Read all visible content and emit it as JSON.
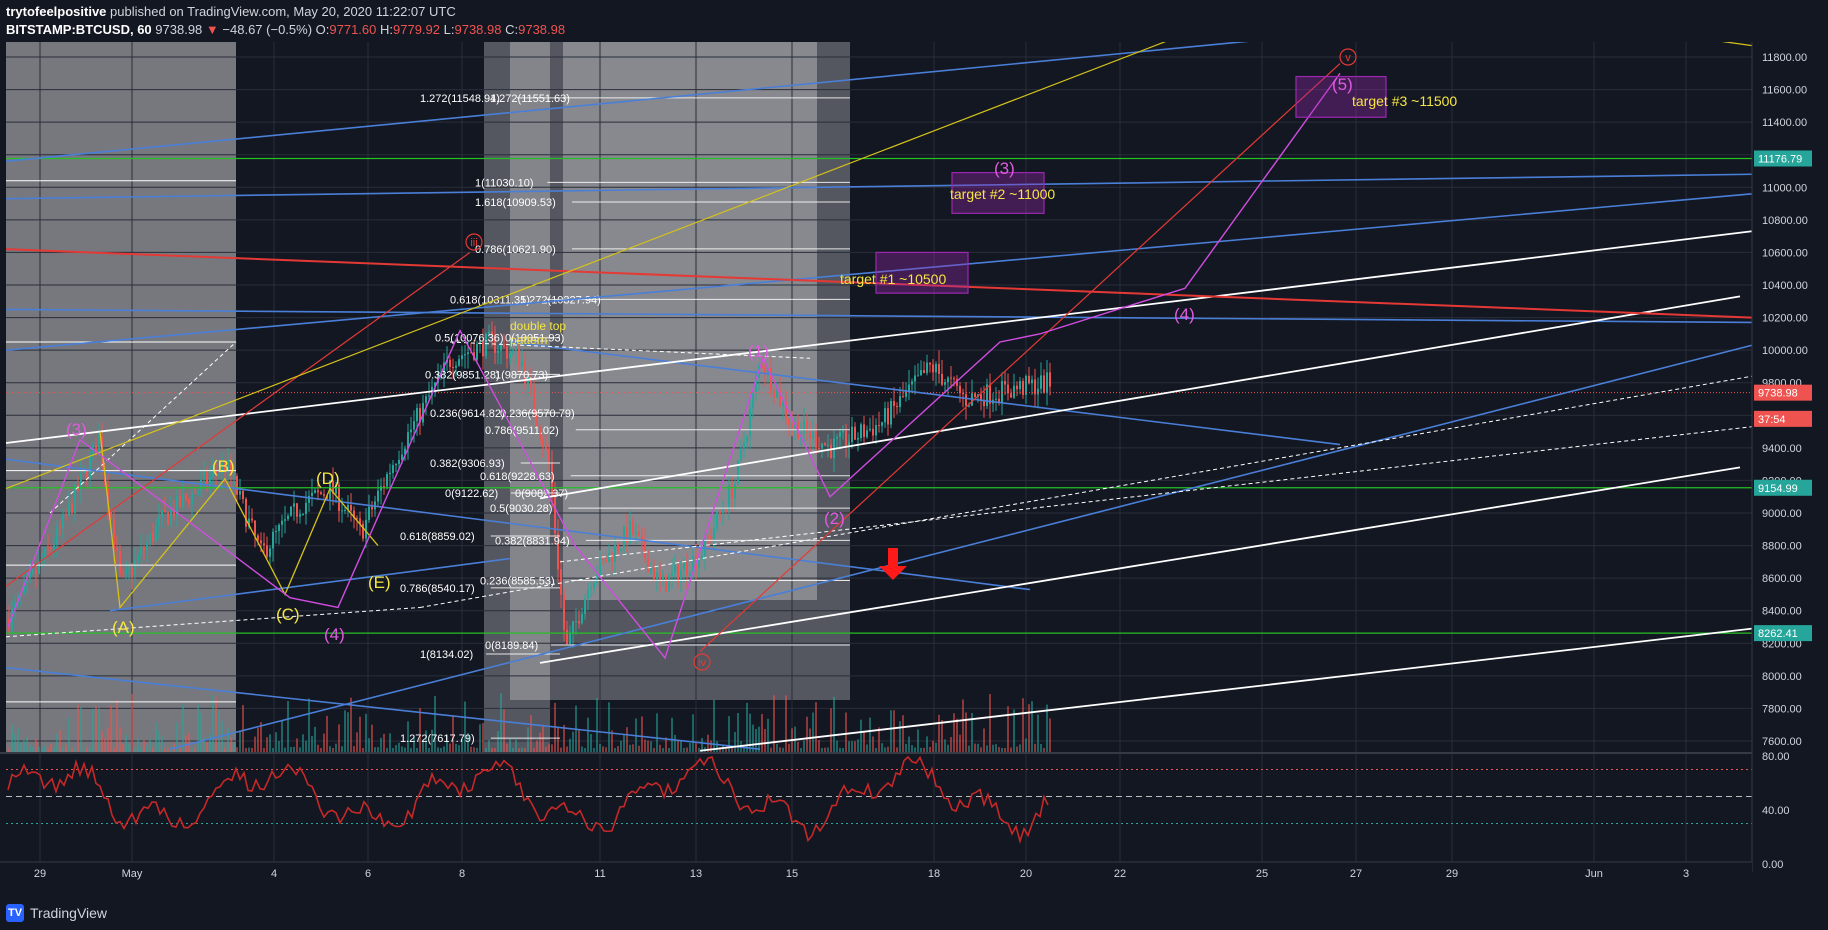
{
  "header": {
    "author": "trytofeelpositive",
    "published": "published on TradingView.com, May 20, 2020 11:22:07 UTC",
    "symbol": "BITSTAMP:BTCUSD, 60",
    "last": "9738.98",
    "change": "−48.67 (−0.5%)",
    "open_label": "O:",
    "open": "9771.60",
    "high_label": "H:",
    "high": "9779.92",
    "low_label": "L:",
    "low": "9738.98",
    "close_label": "C:",
    "close": "9738.98"
  },
  "footer": {
    "brand": "TradingView",
    "logo_icon": "tradingview-logo-icon"
  },
  "colors": {
    "background": "#131722",
    "grid": "#2a2e39",
    "up": "#26a69a",
    "down": "#ef5350",
    "price_line": "#ef5350",
    "trend_blue": "#4a7fd8",
    "trend_white": "#ffffff",
    "red_line": "#e53935",
    "yellow_line": "#d4c21a",
    "magenta": "#d04de0",
    "green_level": "#26c026",
    "label_yellow": "#f5e642",
    "label_magenta": "#e05be0",
    "label_red": "#e53935",
    "rsi_line": "#c62828",
    "target_box": "#9c27b0"
  },
  "chart_data": {
    "type": "candlestick",
    "title": "",
    "ylim": [
      7500,
      12000
    ],
    "price_ticks": [
      "11800.00",
      "11600.00",
      "11400.00",
      "11200.00",
      "11000.00",
      "10800.00",
      "10600.00",
      "10400.00",
      "10200.00",
      "10000.00",
      "9800.00",
      "9600.00",
      "9400.00",
      "9200.00",
      "9000.00",
      "8800.00",
      "8600.00",
      "8400.00",
      "8200.00",
      "8000.00",
      "7800.00",
      "7600.00"
    ],
    "x_ticks": [
      "29",
      "May",
      "4",
      "6",
      "8",
      "11",
      "13",
      "15",
      "18",
      "20",
      "22",
      "25",
      "27",
      "29",
      "Jun",
      "3"
    ],
    "price_badges": [
      {
        "label": "11176.79",
        "value": 11176.79,
        "color": "#26a69a"
      },
      {
        "label": "9738.98",
        "value": 9738.98,
        "color": "#ef5350"
      },
      {
        "label": "37:54",
        "value": 9578,
        "color": "#ef5350"
      },
      {
        "label": "9154.99",
        "value": 9154.99,
        "color": "#26a69a"
      },
      {
        "label": "8262.41",
        "value": 8262.41,
        "color": "#26a69a"
      }
    ],
    "fib_labels": [
      {
        "label": "1.272(11548.94)",
        "value": 11548.94,
        "alt": "1.272(11551.63)"
      },
      {
        "label": "1(11030.10)",
        "value": 11030.1
      },
      {
        "label": "1.618(10909.53)",
        "value": 10909.53
      },
      {
        "label": "0.786(10621.90)",
        "value": 10621.9
      },
      {
        "label": "0.618(10311.35)",
        "value": 10311.35,
        "alt": "1.272(10327.94)"
      },
      {
        "label": "0.5(10076.36)",
        "value": 10076.36,
        "alt": "0(10051.93)"
      },
      {
        "label": "0.382(9851.28)",
        "value": 9851.28,
        "alt": "1(9870.73)"
      },
      {
        "label": "0.236(9614.82)",
        "value": 9614.82,
        "alt": "0.236(9570.79)"
      },
      {
        "label": "0.786(9511.02)",
        "value": 9511.02
      },
      {
        "label": "0.382(9306.93)",
        "value": 9306.93
      },
      {
        "label": "0.618(9228.63)",
        "value": 9228.63
      },
      {
        "label": "0(9122.62)",
        "value": 9122.62,
        "alt": "0(9082.37)"
      },
      {
        "label": "0.5(9030.28)",
        "value": 9030.28
      },
      {
        "label": "0.618(8859.02)",
        "value": 8859.02
      },
      {
        "label": "0.382(8831.94)",
        "value": 8831.94
      },
      {
        "label": "0.236(8585.53)",
        "value": 8585.53
      },
      {
        "label": "0.786(8540.17)",
        "value": 8540.17
      },
      {
        "label": "0(8189.84)",
        "value": 8189.84
      },
      {
        "label": "1(8134.02)",
        "value": 8134.02
      },
      {
        "label": "1.272(7617.79)",
        "value": 7617.79
      }
    ],
    "wave_labels_yellow": [
      "(A)",
      "(B)",
      "(C)",
      "(D)",
      "(E)"
    ],
    "wave_labels_magenta": [
      "(3)",
      "(4)",
      "(1)",
      "(2)",
      "(3)",
      "(4)",
      "(5)"
    ],
    "wave_labels_red": [
      "iii",
      "iv",
      "v"
    ],
    "annotations": [
      "double top pattern",
      "target #1 ~10500",
      "target #2 ~11000",
      "target #3 ~11500"
    ],
    "targets": [
      10500,
      11000,
      11500
    ],
    "levels_green": [
      11176.79,
      9154.99,
      8262.41
    ],
    "rsi": {
      "ticks": [
        "80.00",
        "40.00",
        "0.00"
      ],
      "levels": [
        70,
        50,
        30
      ],
      "ylim": [
        0,
        100
      ]
    },
    "grid": true
  }
}
